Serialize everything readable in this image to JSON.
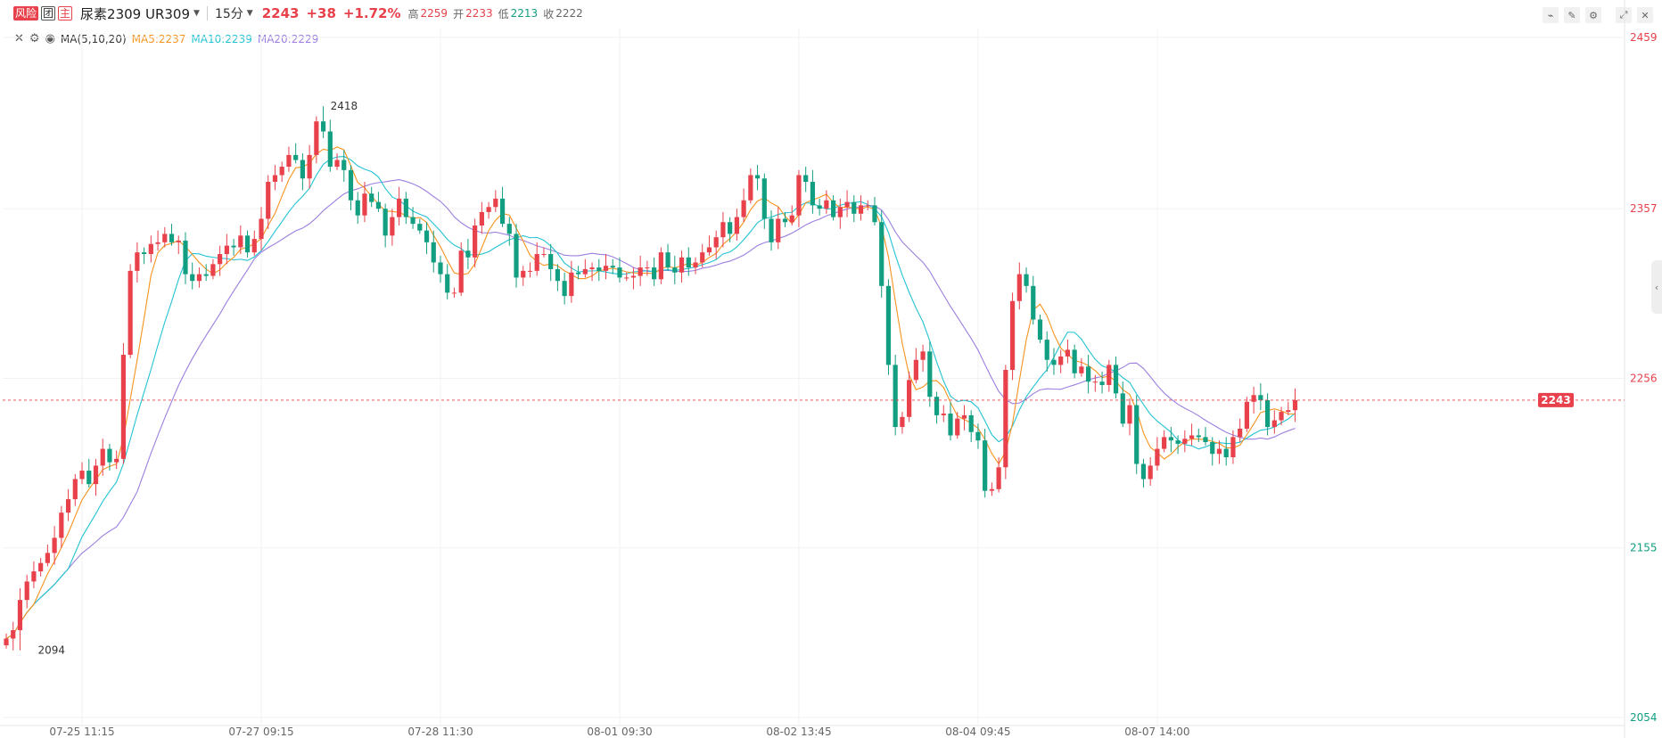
{
  "header": {
    "tag_risk": "风险",
    "tag_group": "团",
    "tag_main": "主",
    "symbol": "尿素2309 UR309",
    "interval": "15分",
    "last": "2243",
    "change": "+38",
    "change_pct": "+1.72%",
    "high_label": "高",
    "high": "2259",
    "open_label": "开",
    "open": "2233",
    "low_label": "低",
    "low": "2213",
    "close_label": "收",
    "close": "2222"
  },
  "ma_bar": {
    "title": "MA(5,10,20)",
    "ma5": "MA5:2237",
    "ma10": "MA10:2239",
    "ma20": "MA20:2229"
  },
  "colors": {
    "up": "#e8414b",
    "down": "#129e80",
    "ma5": "#f7931e",
    "ma10": "#23c3d4",
    "ma20": "#9c7fe0"
  },
  "chart_data": {
    "type": "candlestick",
    "ylim": [
      2054,
      2459
    ],
    "y_ticks": [
      2459,
      2357,
      2256,
      2155,
      2054
    ],
    "y_tick_colors": [
      "#e8414b",
      "#e8414b",
      "#e8414b",
      "#129e80",
      "#129e80"
    ],
    "x_tick_labels": [
      "07-25 11:15",
      "07-27 09:15",
      "07-28 11:30",
      "08-01 09:30",
      "08-02 13:45",
      "08-04 09:45",
      "08-07 14:00"
    ],
    "x_tick_index": [
      11,
      37,
      63,
      89,
      115,
      141,
      167
    ],
    "last_price_label": "2243",
    "last_price": 2243,
    "high_marker": {
      "index": 46,
      "value": 2418,
      "label": "2418"
    },
    "low_marker": {
      "index": 2,
      "value": 2094,
      "label": "2094"
    },
    "closes": [
      2101,
      2106,
      2124,
      2135,
      2141,
      2146,
      2152,
      2161,
      2176,
      2184,
      2196,
      2201,
      2193,
      2204,
      2214,
      2206,
      2208,
      2270,
      2320,
      2331,
      2330,
      2336,
      2337,
      2342,
      2337,
      2338,
      2318,
      2314,
      2318,
      2317,
      2324,
      2330,
      2335,
      2334,
      2341,
      2331,
      2339,
      2351,
      2373,
      2377,
      2382,
      2389,
      2386,
      2375,
      2389,
      2409,
      2403,
      2382,
      2386,
      2380,
      2362,
      2353,
      2366,
      2361,
      2357,
      2341,
      2352,
      2363,
      2352,
      2348,
      2344,
      2337,
      2325,
      2318,
      2307,
      2307,
      2332,
      2328,
      2347,
      2355,
      2358,
      2363,
      2348,
      2342,
      2316,
      2320,
      2320,
      2330,
      2330,
      2321,
      2314,
      2305,
      2319,
      2318,
      2321,
      2322,
      2320,
      2323,
      2322,
      2316,
      2316,
      2317,
      2322,
      2322,
      2315,
      2331,
      2322,
      2319,
      2328,
      2322,
      2325,
      2331,
      2334,
      2340,
      2349,
      2342,
      2352,
      2362,
      2377,
      2375,
      2351,
      2337,
      2351,
      2349,
      2353,
      2377,
      2373,
      2359,
      2357,
      2362,
      2352,
      2358,
      2361,
      2354,
      2359,
      2359,
      2349,
      2311,
      2264,
      2227,
      2233,
      2255,
      2267,
      2272,
      2245,
      2234,
      2235,
      2222,
      2232,
      2234,
      2224,
      2219,
      2189,
      2190,
      2203,
      2261,
      2302,
      2318,
      2311,
      2291,
      2279,
      2267,
      2264,
      2269,
      2273,
      2259,
      2263,
      2254,
      2254,
      2252,
      2264,
      2247,
      2229,
      2240,
      2205,
      2196,
      2204,
      2214,
      2221,
      2219,
      2217,
      2220,
      2222,
      2221,
      2218,
      2211,
      2214,
      2209,
      2221,
      2226,
      2242,
      2246,
      2243,
      2227,
      2231,
      2236,
      2237,
      2243
    ],
    "series_ma": [
      {
        "name": "MA5",
        "value": 2237
      },
      {
        "name": "MA10",
        "value": 2239
      },
      {
        "name": "MA20",
        "value": 2229
      }
    ]
  }
}
